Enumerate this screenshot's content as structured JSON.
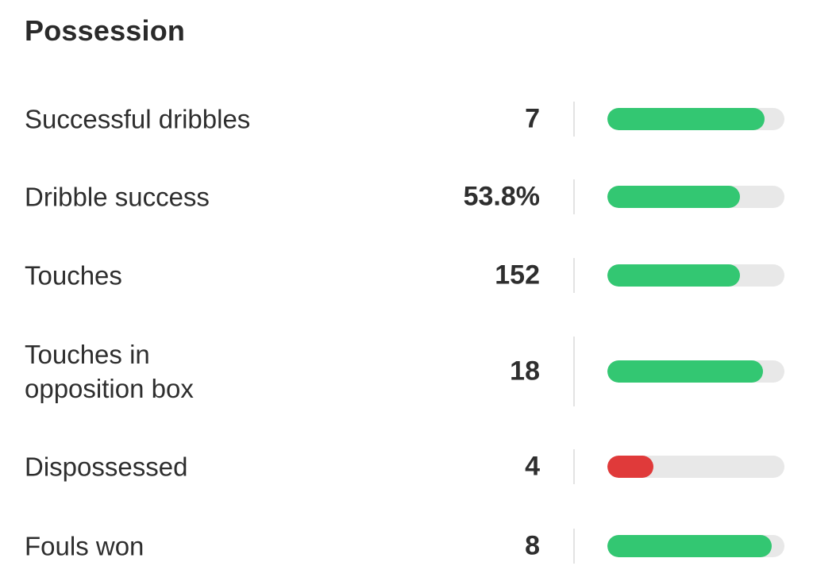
{
  "section": {
    "title": "Possession"
  },
  "colors": {
    "good": "#33c772",
    "bad": "#e03a3a",
    "track": "#e8e8e8"
  },
  "stats": [
    {
      "label": "Successful dribbles",
      "value": "7",
      "fill_fraction": 0.89,
      "status": "good"
    },
    {
      "label": "Dribble success",
      "value": "53.8%",
      "fill_fraction": 0.75,
      "status": "good"
    },
    {
      "label": "Touches",
      "value": "152",
      "fill_fraction": 0.75,
      "status": "good"
    },
    {
      "label": "Touches in opposition box",
      "value": "18",
      "fill_fraction": 0.88,
      "status": "good"
    },
    {
      "label": "Dispossessed",
      "value": "4",
      "fill_fraction": 0.26,
      "status": "bad"
    },
    {
      "label": "Fouls won",
      "value": "8",
      "fill_fraction": 0.93,
      "status": "good"
    }
  ]
}
